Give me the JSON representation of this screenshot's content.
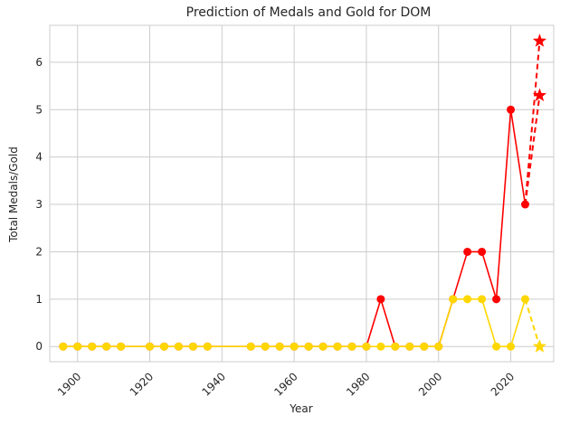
{
  "chart_data": {
    "type": "line",
    "title": "Prediction of Medals and Gold for DOM",
    "xlabel": "Year",
    "ylabel": "Total Medals/Gold",
    "xlim": [
      1892.3,
      2031.9
    ],
    "ylim": [
      -0.32,
      6.78
    ],
    "xticks": [
      1900,
      1920,
      1940,
      1960,
      1980,
      2000,
      2020
    ],
    "yticks": [
      0,
      1,
      2,
      3,
      4,
      5,
      6
    ],
    "grid": true,
    "legend": "none",
    "x": [
      1896,
      1900,
      1904,
      1908,
      1912,
      1920,
      1924,
      1928,
      1932,
      1936,
      1948,
      1952,
      1956,
      1960,
      1964,
      1968,
      1972,
      1976,
      1980,
      1984,
      1988,
      1992,
      1996,
      2000,
      2004,
      2008,
      2012,
      2016,
      2020,
      2024
    ],
    "series": [
      {
        "color": "#ff0000",
        "values": [
          0,
          0,
          0,
          0,
          0,
          0,
          0,
          0,
          0,
          0,
          0,
          0,
          0,
          0,
          0,
          0,
          0,
          0,
          0,
          1,
          0,
          0,
          0,
          0,
          1,
          2,
          2,
          1,
          5,
          3
        ],
        "prediction": {
          "x": [
            2024,
            2028
          ],
          "values": [
            3,
            6.45
          ],
          "marker": "star"
        },
        "prediction_alt": {
          "x": [
            2024,
            2028
          ],
          "values": [
            3,
            5.3
          ],
          "marker": "star"
        }
      },
      {
        "color": "#ffd700",
        "values": [
          0,
          0,
          0,
          0,
          0,
          0,
          0,
          0,
          0,
          0,
          0,
          0,
          0,
          0,
          0,
          0,
          0,
          0,
          0,
          0,
          0,
          0,
          0,
          0,
          1,
          1,
          1,
          0,
          0,
          1
        ],
        "prediction": {
          "x": [
            2024,
            2028
          ],
          "values": [
            1,
            0
          ],
          "marker": "star"
        }
      }
    ]
  }
}
